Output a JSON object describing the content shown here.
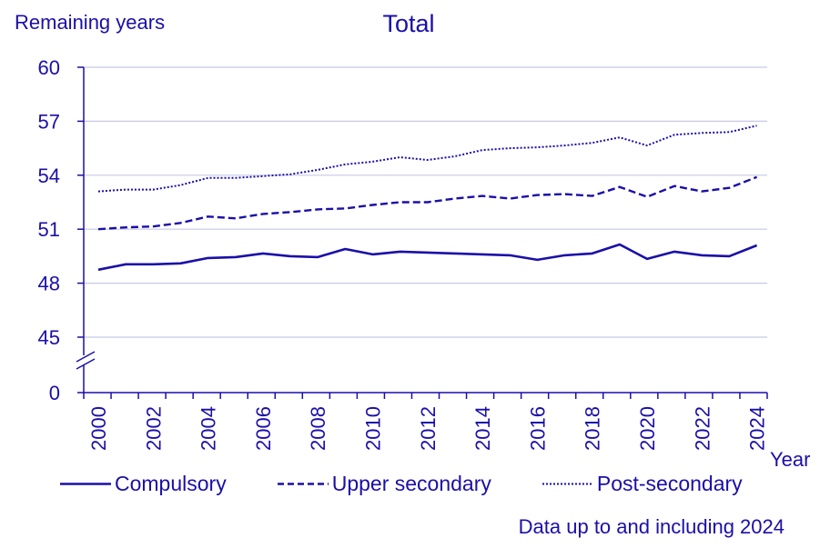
{
  "chart_data": {
    "type": "line",
    "title": "Total",
    "ylabel": "Remaining years",
    "xlabel": "Year",
    "ylim": [
      45,
      60
    ],
    "y_axis_break": true,
    "yticks": [
      "0",
      "45",
      "48",
      "51",
      "54",
      "57",
      "60"
    ],
    "x": [
      2000,
      2001,
      2002,
      2003,
      2004,
      2005,
      2006,
      2007,
      2008,
      2009,
      2010,
      2011,
      2012,
      2013,
      2014,
      2015,
      2016,
      2017,
      2018,
      2019,
      2020,
      2021,
      2022,
      2023,
      2024
    ],
    "xtick_labels": [
      "2000",
      "2002",
      "2004",
      "2006",
      "2008",
      "2010",
      "2012",
      "2014",
      "2016",
      "2018",
      "2020",
      "2022",
      "2024"
    ],
    "grid": true,
    "legend_position": "bottom",
    "series": [
      {
        "name": "Compulsory",
        "style": "solid",
        "color": "#1a0fa8",
        "values": [
          48.75,
          49.05,
          49.05,
          49.1,
          49.4,
          49.45,
          49.65,
          49.5,
          49.45,
          49.9,
          49.6,
          49.75,
          49.7,
          49.65,
          49.6,
          49.55,
          49.3,
          49.55,
          49.65,
          50.15,
          49.35,
          49.75,
          49.55,
          49.5,
          50.1
        ]
      },
      {
        "name": "Upper secondary",
        "style": "dashed",
        "color": "#1a0fa8",
        "values": [
          51.0,
          51.1,
          51.15,
          51.35,
          51.7,
          51.6,
          51.85,
          51.95,
          52.1,
          52.15,
          52.35,
          52.5,
          52.5,
          52.7,
          52.85,
          52.7,
          52.9,
          52.95,
          52.85,
          53.35,
          52.8,
          53.4,
          53.1,
          53.3,
          53.9
        ]
      },
      {
        "name": "Post-secondary",
        "style": "dotted",
        "color": "#1a0fa8",
        "values": [
          53.1,
          53.2,
          53.2,
          53.45,
          53.85,
          53.85,
          53.95,
          54.05,
          54.3,
          54.6,
          54.75,
          55.0,
          54.85,
          55.05,
          55.4,
          55.5,
          55.55,
          55.65,
          55.8,
          56.1,
          55.65,
          56.25,
          56.35,
          56.4,
          56.75
        ]
      }
    ],
    "footnote": "Data up to and including 2024"
  }
}
